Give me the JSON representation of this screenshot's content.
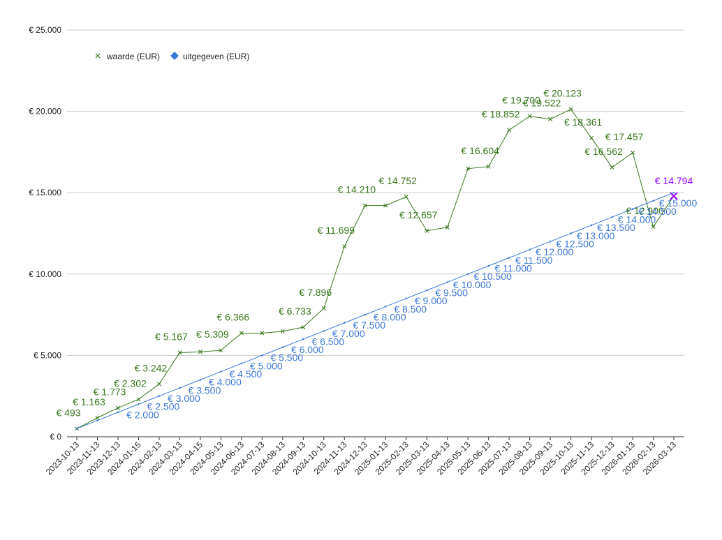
{
  "chart_data": {
    "type": "line",
    "title": "",
    "xlabel": "",
    "ylabel": "",
    "ylim": [
      0,
      25000
    ],
    "yticks": [
      0,
      5000,
      10000,
      15000,
      20000,
      25000
    ],
    "ytick_labels": [
      "€ 0",
      "€ 5.000",
      "€ 10.000",
      "€ 15.000",
      "€ 20.000",
      "€ 25.000"
    ],
    "grid": true,
    "legend_position": "top-left",
    "categories": [
      "2023-10-13",
      "2023-11-13",
      "2023-12-13",
      "2024-01-15",
      "2024-02-13",
      "2024-03-13",
      "2024-04-15",
      "2024-05-13",
      "2024-06-13",
      "2024-07-13",
      "2024-08-13",
      "2024-09-13",
      "2024-10-13",
      "2024-11-13",
      "2024-12-13",
      "2025-01-13",
      "2025-02-13",
      "2025-03-13",
      "2025-04-13",
      "2025-05-13",
      "2025-06-13",
      "2025-07-13",
      "2025-08-13",
      "2025-09-13",
      "2025-10-13",
      "2025-11-13",
      "2025-12-13",
      "2026-01-13",
      "2026-02-13",
      "2026-03-13"
    ],
    "series": [
      {
        "name": "waarde (EUR)",
        "color": "#38761d",
        "marker": "x",
        "values": [
          493,
          1163,
          1773,
          2302,
          3242,
          5167,
          5220,
          5309,
          6366,
          6366,
          6480,
          6733,
          7896,
          11699,
          14210,
          14210,
          14752,
          12657,
          12870,
          16480,
          16604,
          18852,
          19700,
          19522,
          20123,
          18361,
          16562,
          17457,
          12900,
          14794
        ],
        "labels": [
          "€ 493",
          "€ 1.163",
          "€ 1.773",
          "€ 2.302",
          "€ 3.242",
          "€ 5.167",
          "",
          "€ 5.309",
          "€ 6.366",
          "",
          "",
          "€ 6.733",
          "€ 7.896",
          "€ 11.699",
          "€ 14.210",
          "",
          "€ 14.752",
          "€ 12.657",
          "",
          "",
          "€ 16.604",
          "€ 18.852",
          "€ 19.700",
          "€ 19.522",
          "€ 20.123",
          "€ 18.361",
          "€ 16.562",
          "€ 17.457",
          "€ 12.900",
          "€ 14.794"
        ]
      },
      {
        "name": "uitgegeven (EUR)",
        "color": "#3c78d8",
        "marker": "diamond",
        "values": [
          500,
          1000,
          1500,
          2000,
          2500,
          3000,
          3500,
          4000,
          4500,
          5000,
          5500,
          6000,
          6500,
          7000,
          7500,
          8000,
          8500,
          9000,
          9500,
          10000,
          10500,
          11000,
          11500,
          12000,
          12500,
          13000,
          13500,
          14000,
          14500,
          15000
        ],
        "labels": [
          "",
          "",
          "",
          "€ 2.000",
          "€ 2.500",
          "€ 3.000",
          "€ 3.500",
          "€ 4.000",
          "€ 4.500",
          "€ 5.000",
          "€ 5.500",
          "€ 6.000",
          "€ 6.500",
          "€ 7.000",
          "€ 7.500",
          "€ 8.000",
          "€ 8.500",
          "€ 9.000",
          "€ 9.500",
          "€ 10.000",
          "€ 10.500",
          "€ 11.000",
          "€ 11.500",
          "€ 12.000",
          "€ 12.500",
          "€ 13.000",
          "€ 13.500",
          "€ 14.000",
          "€ 14.500",
          "€ 15.000"
        ]
      }
    ],
    "highlight": {
      "series": "waarde (EUR)",
      "index": 29,
      "color": "#9900ff"
    }
  }
}
